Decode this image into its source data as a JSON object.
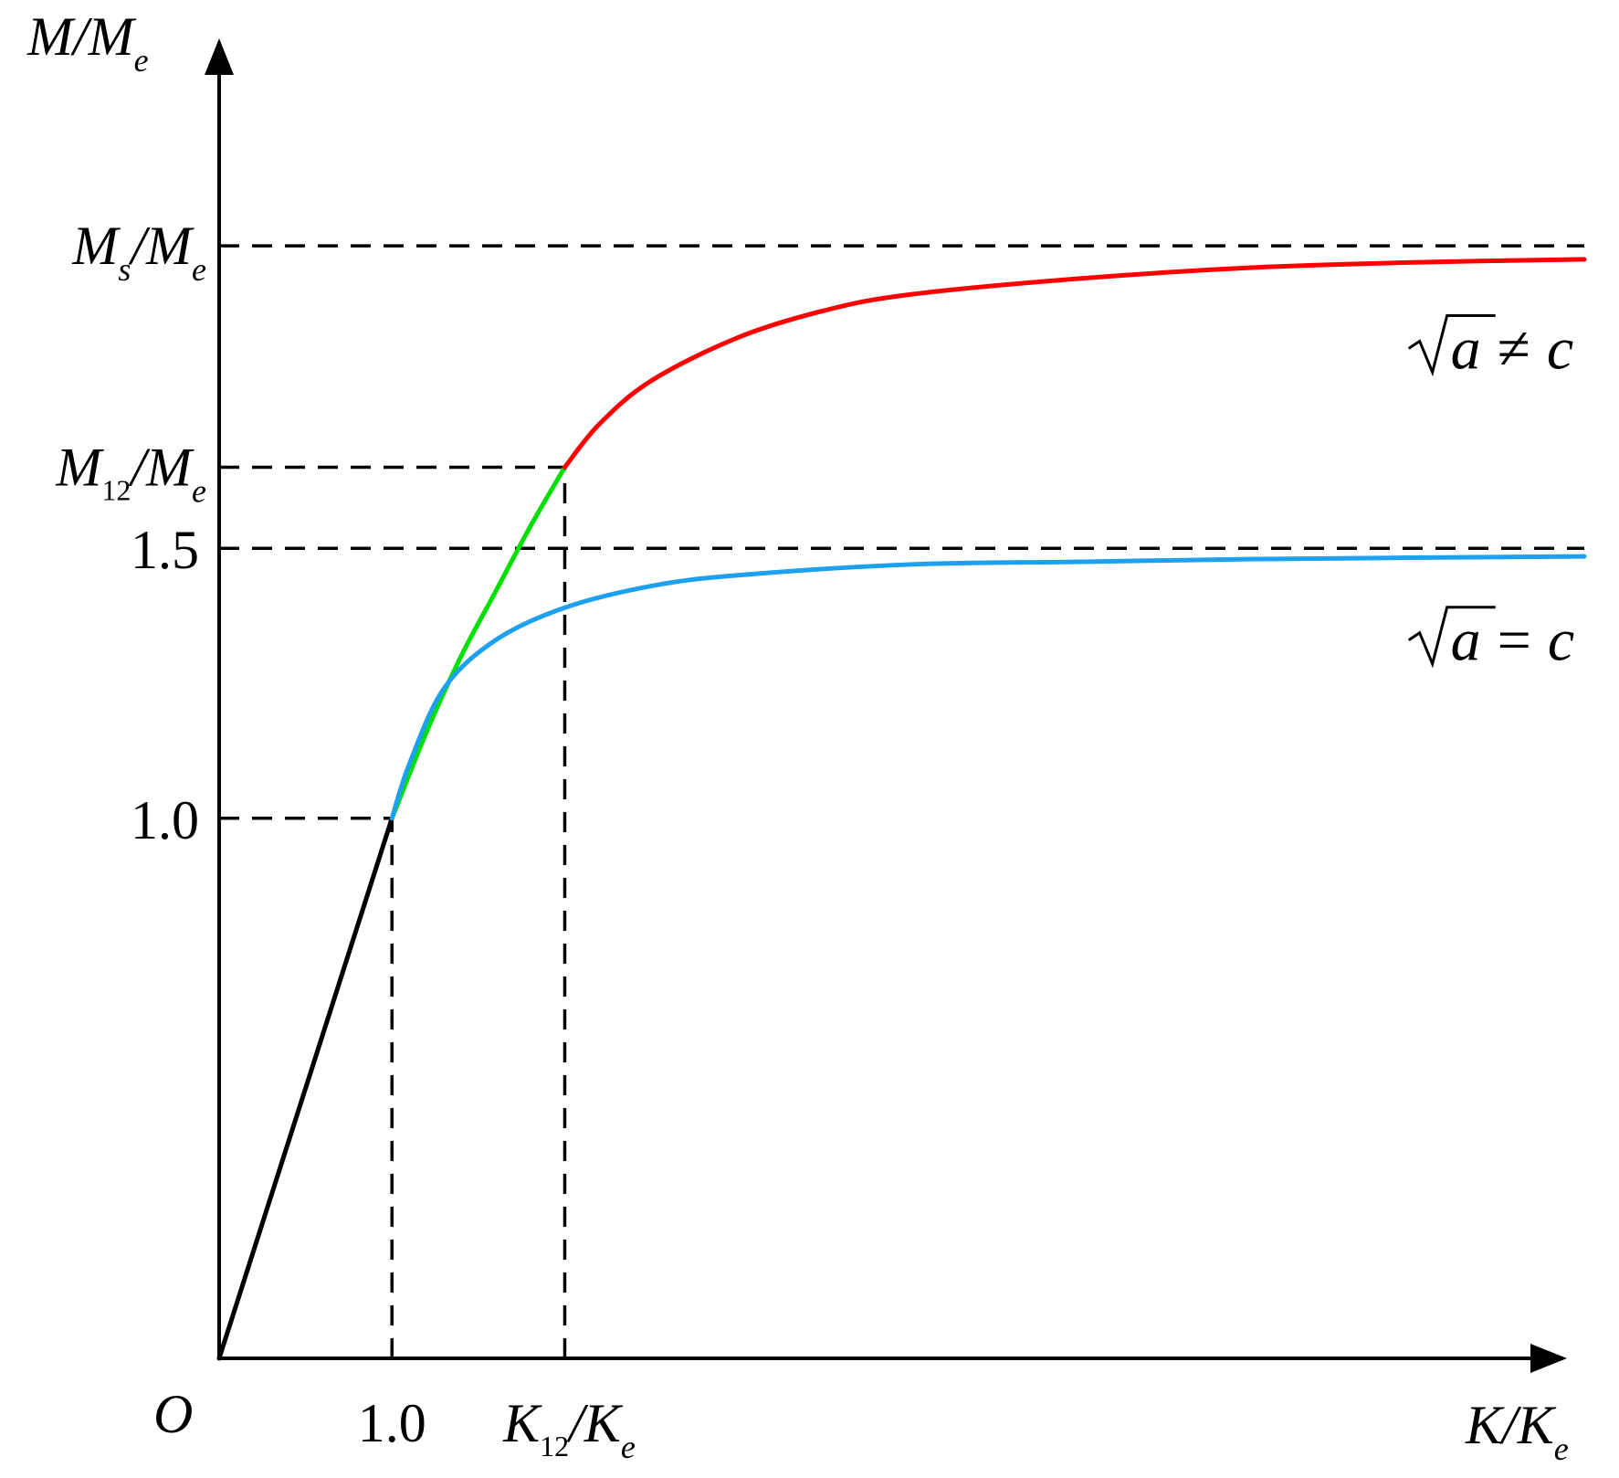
{
  "chart_data": {
    "type": "line",
    "title": "",
    "axes": {
      "y_label": {
        "main": "M/M",
        "sub": "e"
      },
      "x_label": {
        "main": "K/K",
        "sub": "e"
      },
      "origin_label": "O",
      "x_ticks": [
        {
          "value": 1.0,
          "label": "1.0"
        },
        {
          "value": 2.0,
          "label": "K",
          "sub": "12",
          "suffix": "/K",
          "suffix_sub": "e"
        }
      ],
      "y_ticks": [
        {
          "value": 1.0,
          "label": "1.0"
        },
        {
          "value": 1.5,
          "label": "1.5"
        },
        {
          "value": 1.65,
          "label": "M",
          "sub": "12",
          "suffix": "/M",
          "suffix_sub": "e"
        },
        {
          "value": 2.06,
          "label": "M",
          "sub": "s",
          "suffix": "/M",
          "suffix_sub": "e"
        }
      ],
      "xlim": [
        0,
        7.9
      ],
      "ylim": [
        0,
        2.5
      ]
    },
    "reference_lines": [
      {
        "orientation": "h",
        "y": 1.0,
        "x_from": 0,
        "x_to": 1.0
      },
      {
        "orientation": "v",
        "x": 1.0,
        "y_from": 0,
        "y_to": 1.0
      },
      {
        "orientation": "h",
        "y": 1.65,
        "x_from": 0,
        "x_to": 2.0
      },
      {
        "orientation": "v",
        "x": 2.0,
        "y_from": 0,
        "y_to": 1.65
      },
      {
        "orientation": "h",
        "y": 1.5,
        "x_from": 0,
        "x_to": 7.9
      },
      {
        "orientation": "h",
        "y": 2.06,
        "x_from": 0,
        "x_to": 7.9
      }
    ],
    "series": [
      {
        "color": "#000000",
        "points": [
          [
            0,
            0
          ],
          [
            1.0,
            1.0
          ]
        ]
      },
      {
        "color": "#00e000",
        "points": [
          [
            1.0,
            1.0
          ],
          [
            1.2,
            1.16
          ],
          [
            1.4,
            1.3
          ],
          [
            1.6,
            1.42
          ],
          [
            1.8,
            1.54
          ],
          [
            2.0,
            1.65
          ]
        ]
      },
      {
        "color": "#ff0000",
        "points": [
          [
            2.0,
            1.65
          ],
          [
            2.2,
            1.73
          ],
          [
            2.5,
            1.81
          ],
          [
            3.0,
            1.89
          ],
          [
            3.5,
            1.94
          ],
          [
            4.0,
            1.97
          ],
          [
            5.0,
            2.0
          ],
          [
            6.0,
            2.02
          ],
          [
            7.0,
            2.03
          ],
          [
            7.9,
            2.035
          ]
        ]
      },
      {
        "color": "#1ea0f0",
        "points": [
          [
            1.0,
            1.0
          ],
          [
            1.1,
            1.1
          ],
          [
            1.3,
            1.24
          ],
          [
            1.6,
            1.33
          ],
          [
            2.0,
            1.39
          ],
          [
            2.5,
            1.43
          ],
          [
            3.0,
            1.45
          ],
          [
            4.0,
            1.47
          ],
          [
            5.0,
            1.475
          ],
          [
            6.0,
            1.48
          ],
          [
            7.9,
            1.485
          ]
        ]
      }
    ],
    "annotations": [
      {
        "text_var": "a",
        "relation": "≠",
        "text_rhs": "c",
        "x": 7.0,
        "y": 1.87
      },
      {
        "text_var": "a",
        "relation": "=",
        "text_rhs": "c",
        "x": 7.0,
        "y": 1.33
      }
    ]
  }
}
